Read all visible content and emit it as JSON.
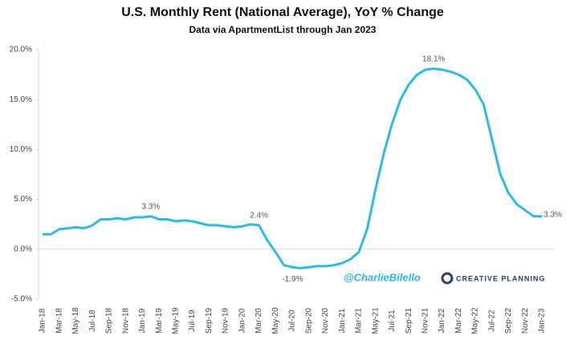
{
  "chart_data": {
    "type": "line",
    "title": "U.S. Monthly Rent (National Average), YoY % Change",
    "subtitle": "Data via ApartmentList through Jan 2023",
    "annotations": [
      "@CharlieBilello",
      "CREATIVE PLANNING"
    ],
    "categories": [
      "Jan-18",
      null,
      "Mar-18",
      null,
      "May-18",
      null,
      "Jul-18",
      null,
      "Sep-18",
      null,
      "Nov-18",
      null,
      "Jan-19",
      null,
      "Mar-19",
      null,
      "May-19",
      null,
      "Jul-19",
      null,
      "Sep-19",
      null,
      "Nov-19",
      null,
      "Jan-20",
      null,
      "Mar-20",
      null,
      "May-20",
      null,
      "Jul-20",
      null,
      "Sep-20",
      null,
      "Nov-20",
      null,
      "Jan-21",
      null,
      "Mar-21",
      null,
      "May-21",
      null,
      "Jul-21",
      null,
      "Sep-21",
      null,
      "Nov-21",
      null,
      "Jan-22",
      null,
      "Mar-22",
      null,
      "May-22",
      null,
      "Jul-22",
      null,
      "Sep-22",
      null,
      "Nov-22",
      null,
      "Jan-23"
    ],
    "series": [
      {
        "name": "YoY % Change",
        "color": "#2bbaf0",
        "values": [
          1.5,
          1.5,
          2.0,
          2.1,
          2.2,
          2.1,
          2.4,
          3.0,
          3.0,
          3.1,
          3.0,
          3.2,
          3.2,
          3.3,
          3.0,
          3.0,
          2.8,
          2.9,
          2.8,
          2.6,
          2.4,
          2.4,
          2.3,
          2.2,
          2.3,
          2.5,
          2.4,
          0.9,
          -0.3,
          -1.6,
          -1.8,
          -1.9,
          -1.8,
          -1.7,
          -1.7,
          -1.6,
          -1.4,
          -1.0,
          -0.3,
          2.0,
          6.0,
          9.6,
          12.6,
          15.0,
          16.5,
          17.5,
          18.0,
          18.1,
          18.0,
          17.8,
          17.5,
          17.0,
          16.0,
          14.5,
          11.0,
          7.5,
          5.6,
          4.5,
          3.9,
          3.3,
          3.3
        ],
        "value_labels": [
          null,
          null,
          null,
          null,
          null,
          null,
          null,
          null,
          null,
          null,
          null,
          null,
          null,
          "3.3%",
          null,
          null,
          null,
          null,
          null,
          null,
          null,
          null,
          null,
          null,
          null,
          null,
          "2.4%",
          null,
          null,
          null,
          null,
          "-1.9%",
          null,
          null,
          null,
          null,
          null,
          null,
          null,
          null,
          null,
          null,
          null,
          null,
          null,
          null,
          null,
          "18.1%",
          null,
          null,
          null,
          null,
          null,
          null,
          null,
          null,
          null,
          null,
          null,
          null,
          "3.3%"
        ]
      }
    ],
    "ylim": [
      -5,
      20
    ],
    "yticks": [
      {
        "value": -5,
        "label": "-5.0%"
      },
      {
        "value": 0,
        "label": "0.0%"
      },
      {
        "value": 5,
        "label": "5.0%"
      },
      {
        "value": 10,
        "label": "10.0%"
      },
      {
        "value": 15,
        "label": "15.0%"
      },
      {
        "value": 20,
        "label": "20.0%"
      }
    ],
    "grid": false
  }
}
